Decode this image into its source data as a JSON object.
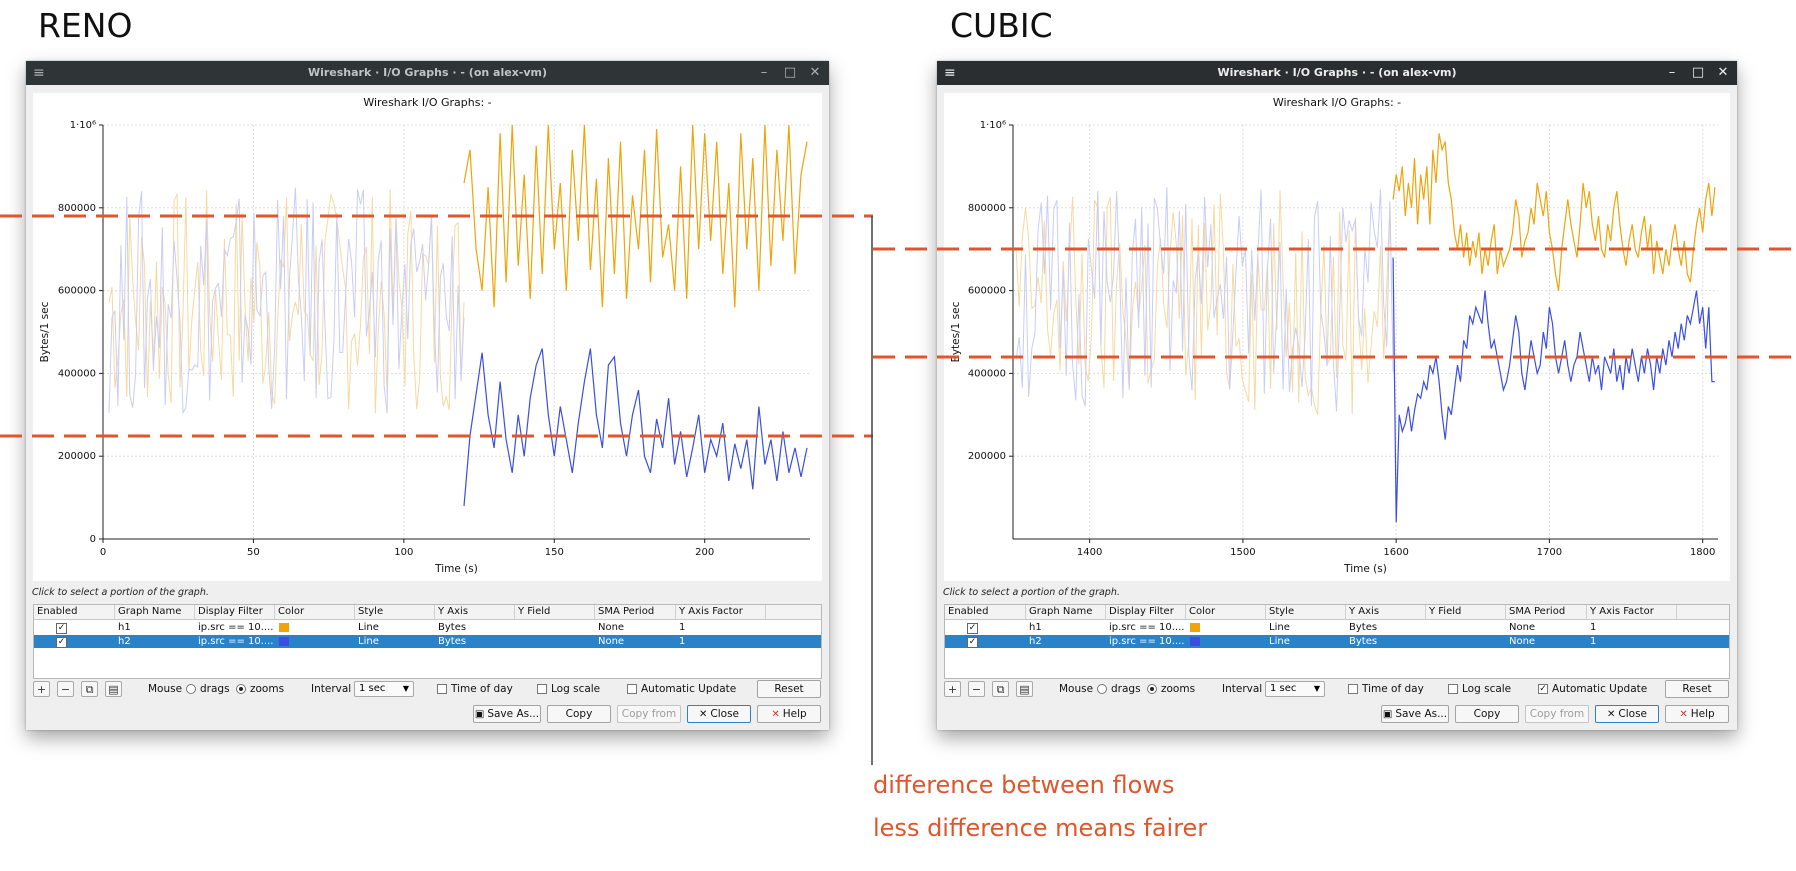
{
  "labels": {
    "left": "RENO",
    "right": "CUBIC"
  },
  "annotation": {
    "line1": "difference between flows",
    "line2": "less difference means fairer",
    "color": "#e0562c"
  },
  "windows": [
    {
      "id": "reno",
      "title": "Wireshark · I/O Graphs · - (on alex-vm)",
      "plot_title": "Wireshark I/O Graphs: -",
      "hint": "Click to select a portion of the graph.",
      "table": {
        "columns": [
          "Enabled",
          "Graph Name",
          "Display Filter",
          "Color",
          "Style",
          "Y Axis",
          "Y Field",
          "SMA Period",
          "Y Axis Factor"
        ],
        "rows": [
          {
            "enabled": true,
            "name": "h1",
            "filter": "ip.src == 10....",
            "color": "#f0a30a",
            "style": "Line",
            "yaxis": "Bytes",
            "yfield": "",
            "sma": "None",
            "factor": "1",
            "selected": false
          },
          {
            "enabled": true,
            "name": "h2",
            "filter": "ip.src == 10....",
            "color": "#3b4ee0",
            "style": "Line",
            "yaxis": "Bytes",
            "yfield": "",
            "sma": "None",
            "factor": "1",
            "selected": true
          }
        ]
      },
      "controls": {
        "mouse_label": "Mouse",
        "drags": "drags",
        "zooms": "zooms",
        "mouse_mode": "zooms",
        "interval_label": "Interval",
        "interval_value": "1 sec",
        "time_of_day": "Time of day",
        "time_of_day_checked": false,
        "log_scale": "Log scale",
        "log_scale_checked": false,
        "auto_update": "Automatic Update",
        "auto_update_checked": false,
        "reset": "Reset"
      },
      "buttons": {
        "save_as": "Save As...",
        "copy": "Copy",
        "copy_from": "Copy from",
        "close": "Close",
        "help": "Help"
      },
      "chart_data": {
        "type": "line",
        "xlabel": "Time (s)",
        "ylabel": "Bytes/1 sec",
        "x_ticks": [
          "0",
          "50",
          "100",
          "150",
          "200"
        ],
        "y_ticks": [
          "0",
          "200000",
          "400000",
          "600000",
          "800000",
          "1·10⁶"
        ],
        "xlim": [
          0,
          235
        ],
        "ylim": [
          0,
          1000000
        ],
        "series": [
          {
            "name": "h1",
            "color": "#f0a30a",
            "x": [
              120,
              122,
              124,
              126,
              128,
              130,
              132,
              134,
              136,
              138,
              140,
              142,
              144,
              146,
              148,
              150,
              152,
              154,
              156,
              158,
              160,
              162,
              164,
              166,
              168,
              170,
              172,
              174,
              176,
              178,
              180,
              182,
              184,
              186,
              188,
              190,
              192,
              194,
              196,
              198,
              200,
              202,
              204,
              206,
              208,
              210,
              212,
              214,
              216,
              218,
              220,
              222,
              224,
              226,
              228,
              230,
              232,
              234
            ],
            "values": [
              860000,
              940000,
              700000,
              600000,
              850000,
              560000,
              980000,
              620000,
              1000000,
              660000,
              880000,
              580000,
              950000,
              640000,
              1000000,
              700000,
              860000,
              600000,
              940000,
              720000,
              1000000,
              650000,
              870000,
              560000,
              920000,
              640000,
              960000,
              580000,
              830000,
              700000,
              940000,
              620000,
              990000,
              680000,
              760000,
              600000,
              900000,
              580000,
              1000000,
              700000,
              980000,
              720000,
              960000,
              640000,
              860000,
              560000,
              980000,
              700000,
              920000,
              600000,
              1000000,
              660000,
              940000,
              720000,
              1000000,
              640000,
              880000,
              960000
            ]
          },
          {
            "name": "h2",
            "color": "#3b4ee0",
            "x": [
              120,
              122,
              124,
              126,
              128,
              130,
              132,
              134,
              136,
              138,
              140,
              142,
              144,
              146,
              148,
              150,
              152,
              154,
              156,
              158,
              160,
              162,
              164,
              166,
              168,
              170,
              172,
              174,
              176,
              178,
              180,
              182,
              184,
              186,
              188,
              190,
              192,
              194,
              196,
              198,
              200,
              202,
              204,
              206,
              208,
              210,
              212,
              214,
              216,
              218,
              220,
              222,
              224,
              226,
              228,
              230,
              232,
              234
            ],
            "values": [
              80000,
              250000,
              350000,
              450000,
              300000,
              220000,
              380000,
              240000,
              160000,
              300000,
              200000,
              340000,
              420000,
              460000,
              300000,
              200000,
              320000,
              240000,
              160000,
              280000,
              380000,
              460000,
              300000,
              220000,
              420000,
              440000,
              280000,
              200000,
              300000,
              360000,
              200000,
              160000,
              290000,
              220000,
              340000,
              180000,
              260000,
              150000,
              220000,
              300000,
              160000,
              240000,
              200000,
              280000,
              140000,
              230000,
              170000,
              240000,
              120000,
              320000,
              180000,
              240000,
              140000,
              260000,
              160000,
              220000,
              150000,
              220000
            ]
          }
        ]
      }
    },
    {
      "id": "cubic",
      "title": "Wireshark · I/O Graphs · - (on alex-vm)",
      "plot_title": "Wireshark I/O Graphs: -",
      "hint": "Click to select a portion of the graph.",
      "table": {
        "columns": [
          "Enabled",
          "Graph Name",
          "Display Filter",
          "Color",
          "Style",
          "Y Axis",
          "Y Field",
          "SMA Period",
          "Y Axis Factor"
        ],
        "rows": [
          {
            "enabled": true,
            "name": "h1",
            "filter": "ip.src == 10....",
            "color": "#f0a30a",
            "style": "Line",
            "yaxis": "Bytes",
            "yfield": "",
            "sma": "None",
            "factor": "1",
            "selected": false
          },
          {
            "enabled": true,
            "name": "h2",
            "filter": "ip.src == 10....",
            "color": "#3b4ee0",
            "style": "Line",
            "yaxis": "Bytes",
            "yfield": "",
            "sma": "None",
            "factor": "1",
            "selected": true
          }
        ]
      },
      "controls": {
        "mouse_label": "Mouse",
        "drags": "drags",
        "zooms": "zooms",
        "mouse_mode": "zooms",
        "interval_label": "Interval",
        "interval_value": "1 sec",
        "time_of_day": "Time of day",
        "time_of_day_checked": false,
        "log_scale": "Log scale",
        "log_scale_checked": false,
        "auto_update": "Automatic Update",
        "auto_update_checked": true,
        "reset": "Reset"
      },
      "buttons": {
        "save_as": "Save As...",
        "copy": "Copy",
        "copy_from": "Copy from",
        "close": "Close",
        "help": "Help"
      },
      "chart_data": {
        "type": "line",
        "xlabel": "Time (s)",
        "ylabel": "Bytes/1 sec",
        "x_ticks": [
          "1400",
          "1500",
          "1600",
          "1700",
          "1800"
        ],
        "y_ticks": [
          "200000",
          "400000",
          "600000",
          "800000",
          "1·10⁶"
        ],
        "xlim": [
          1350,
          1810
        ],
        "ylim": [
          0,
          1000000
        ],
        "series": [
          {
            "name": "h1",
            "color": "#f0a30a",
            "x": [
              1598,
              1600,
              1602,
              1604,
              1606,
              1608,
              1610,
              1612,
              1614,
              1616,
              1618,
              1620,
              1622,
              1624,
              1626,
              1628,
              1630,
              1632,
              1634,
              1636,
              1638,
              1640,
              1642,
              1644,
              1646,
              1648,
              1650,
              1652,
              1654,
              1656,
              1658,
              1660,
              1662,
              1664,
              1666,
              1668,
              1670,
              1672,
              1674,
              1676,
              1678,
              1680,
              1682,
              1684,
              1686,
              1688,
              1690,
              1692,
              1694,
              1696,
              1698,
              1700,
              1702,
              1704,
              1706,
              1708,
              1710,
              1712,
              1714,
              1716,
              1718,
              1720,
              1722,
              1724,
              1726,
              1728,
              1730,
              1732,
              1734,
              1736,
              1738,
              1740,
              1742,
              1744,
              1746,
              1748,
              1750,
              1752,
              1754,
              1756,
              1758,
              1760,
              1762,
              1764,
              1766,
              1768,
              1770,
              1772,
              1774,
              1776,
              1778,
              1780,
              1782,
              1784,
              1786,
              1788,
              1790,
              1792,
              1794,
              1796,
              1798,
              1800,
              1802,
              1804,
              1806,
              1808
            ],
            "values": [
              820000,
              880000,
              840000,
              900000,
              780000,
              860000,
              800000,
              920000,
              760000,
              880000,
              820000,
              900000,
              760000,
              940000,
              860000,
              980000,
              940000,
              960000,
              860000,
              820000,
              740000,
              700000,
              760000,
              680000,
              740000,
              660000,
              720000,
              680000,
              740000,
              640000,
              700000,
              660000,
              720000,
              760000,
              640000,
              700000,
              660000,
              680000,
              700000,
              740000,
              820000,
              780000,
              680000,
              720000,
              740000,
              800000,
              760000,
              860000,
              820000,
              780000,
              840000,
              740000,
              700000,
              640000,
              600000,
              700000,
              760000,
              820000,
              760000,
              720000,
              680000,
              760000,
              860000,
              800000,
              840000,
              760000,
              720000,
              780000,
              700000,
              680000,
              760000,
              720000,
              800000,
              840000,
              760000,
              700000,
              660000,
              720000,
              760000,
              700000,
              680000,
              740000,
              780000,
              700000,
              760000,
              640000,
              720000,
              680000,
              640000,
              700000,
              660000,
              720000,
              760000,
              700000,
              660000,
              720000,
              640000,
              620000,
              700000,
              760000,
              800000,
              740000,
              820000,
              860000,
              780000,
              850000
            ]
          },
          {
            "name": "h2",
            "color": "#3b4ee0",
            "x": [
              1598,
              1600,
              1602,
              1604,
              1606,
              1608,
              1610,
              1612,
              1614,
              1616,
              1618,
              1620,
              1622,
              1624,
              1626,
              1628,
              1630,
              1632,
              1634,
              1636,
              1638,
              1640,
              1642,
              1644,
              1646,
              1648,
              1650,
              1652,
              1654,
              1656,
              1658,
              1660,
              1662,
              1664,
              1666,
              1668,
              1670,
              1672,
              1674,
              1676,
              1678,
              1680,
              1682,
              1684,
              1686,
              1688,
              1690,
              1692,
              1694,
              1696,
              1698,
              1700,
              1702,
              1704,
              1706,
              1708,
              1710,
              1712,
              1714,
              1716,
              1718,
              1720,
              1722,
              1724,
              1726,
              1728,
              1730,
              1732,
              1734,
              1736,
              1738,
              1740,
              1742,
              1744,
              1746,
              1748,
              1750,
              1752,
              1754,
              1756,
              1758,
              1760,
              1762,
              1764,
              1766,
              1768,
              1770,
              1772,
              1774,
              1776,
              1778,
              1780,
              1782,
              1784,
              1786,
              1788,
              1790,
              1792,
              1794,
              1796,
              1798,
              1800,
              1802,
              1804,
              1806,
              1808
            ],
            "values": [
              680000,
              40000,
              300000,
              260000,
              280000,
              320000,
              260000,
              310000,
              350000,
              340000,
              380000,
              360000,
              420000,
              400000,
              440000,
              380000,
              300000,
              240000,
              320000,
              300000,
              360000,
              420000,
              380000,
              480000,
              460000,
              540000,
              520000,
              560000,
              540000,
              520000,
              600000,
              520000,
              460000,
              480000,
              440000,
              400000,
              360000,
              380000,
              420000,
              480000,
              540000,
              500000,
              400000,
              360000,
              420000,
              480000,
              440000,
              400000,
              420000,
              500000,
              460000,
              560000,
              520000,
              440000,
              400000,
              440000,
              480000,
              420000,
              380000,
              420000,
              440000,
              500000,
              460000,
              420000,
              380000,
              440000,
              400000,
              420000,
              360000,
              440000,
              420000,
              400000,
              460000,
              380000,
              420000,
              360000,
              440000,
              400000,
              460000,
              420000,
              380000,
              440000,
              400000,
              460000,
              420000,
              360000,
              440000,
              400000,
              460000,
              420000,
              480000,
              440000,
              500000,
              460000,
              520000,
              480000,
              540000,
              520000,
              560000,
              600000,
              520000,
              560000,
              460000,
              560000,
              380000,
              380000
            ]
          }
        ]
      }
    }
  ]
}
